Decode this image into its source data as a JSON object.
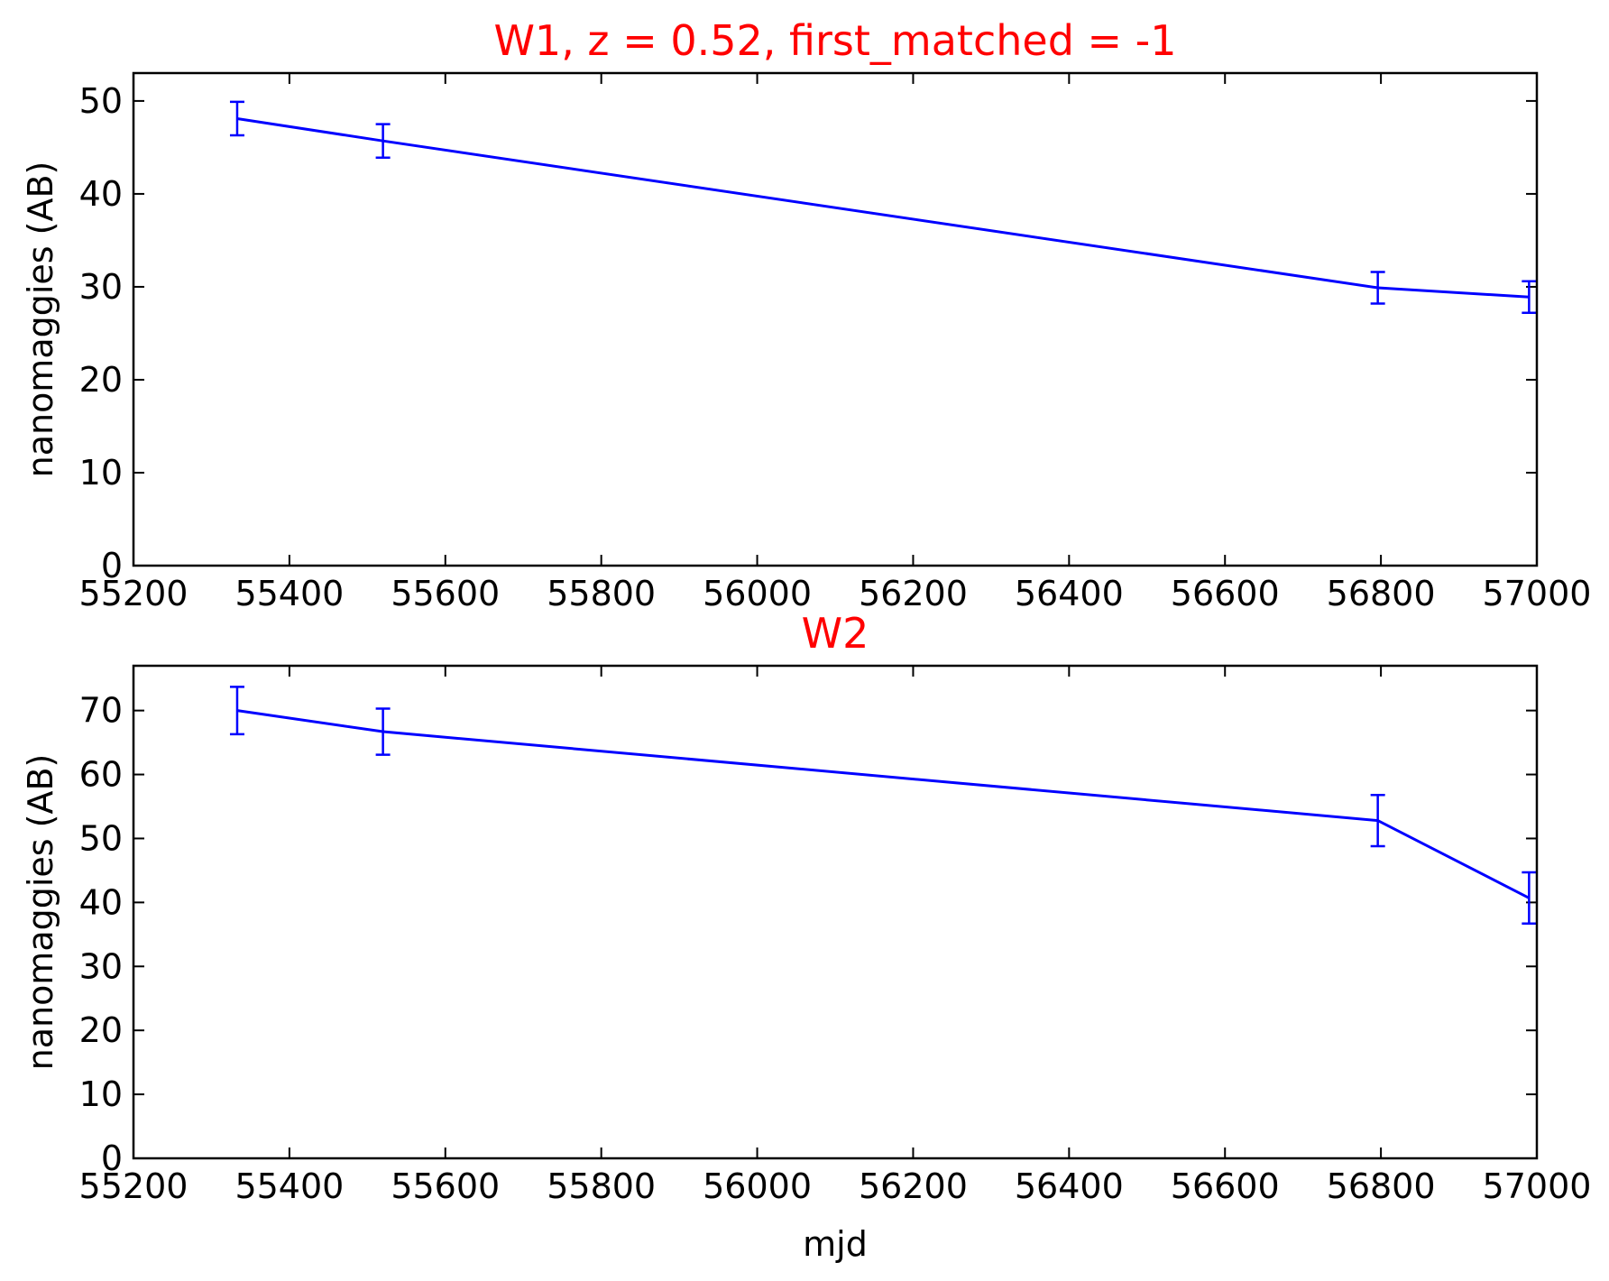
{
  "chart_data": [
    {
      "type": "line",
      "title": "W1, z = 0.52, first_matched = -1",
      "xlabel": "",
      "ylabel": "nanomaggies (AB)",
      "xlim": [
        55200,
        57000
      ],
      "ylim": [
        0,
        53
      ],
      "xticks": [
        55200,
        55400,
        55600,
        55800,
        56000,
        56200,
        56400,
        56600,
        56800,
        57000
      ],
      "yticks": [
        0,
        10,
        20,
        30,
        40,
        50
      ],
      "grid": false,
      "color": "#0000ff",
      "title_color": "#ff0000",
      "series": [
        {
          "x": [
            55333,
            55520,
            56796,
            56990
          ],
          "values": [
            48.1,
            45.7,
            29.9,
            28.9
          ],
          "yerr": [
            1.8,
            1.8,
            1.7,
            1.7
          ]
        }
      ]
    },
    {
      "type": "line",
      "title": "W2",
      "xlabel": "mjd",
      "ylabel": "nanomaggies (AB)",
      "xlim": [
        55200,
        57000
      ],
      "ylim": [
        0,
        77
      ],
      "xticks": [
        55200,
        55400,
        55600,
        55800,
        56000,
        56200,
        56400,
        56600,
        56800,
        57000
      ],
      "yticks": [
        0,
        10,
        20,
        30,
        40,
        50,
        60,
        70
      ],
      "grid": false,
      "color": "#0000ff",
      "title_color": "#ff0000",
      "series": [
        {
          "x": [
            55333,
            55520,
            56796,
            56990
          ],
          "values": [
            70.0,
            66.7,
            52.8,
            40.7
          ],
          "yerr": [
            3.7,
            3.6,
            4.0,
            4.0
          ]
        }
      ]
    }
  ]
}
